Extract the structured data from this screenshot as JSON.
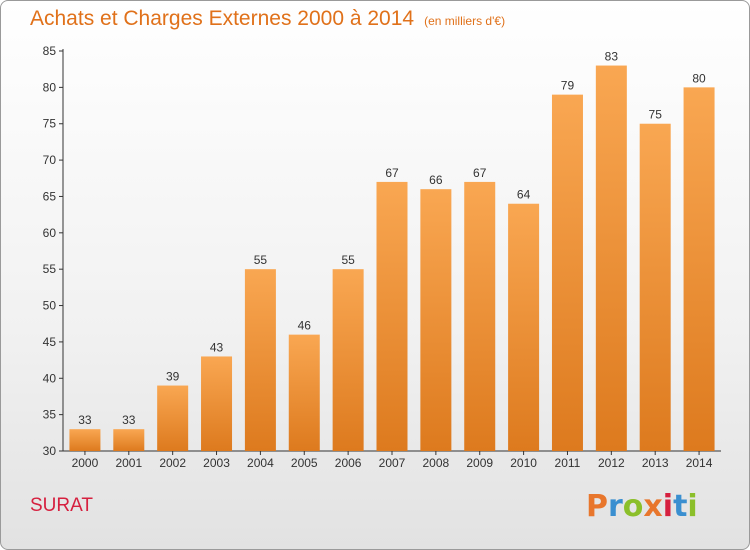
{
  "header": {
    "title": "Achats et Charges Externes 2000 à 2014",
    "subtitle": "(en milliers d'€)"
  },
  "footer": {
    "city": "SURAT",
    "logo": "Proxiti"
  },
  "colors": {
    "title": "#e0711a",
    "city": "#d6203f",
    "bar_light": "#f9a752",
    "bar_dark": "#dd7a1e",
    "logo": [
      "#e8762c",
      "#3a8fd0",
      "#8bbf2a",
      "#e8762c",
      "#d6203f",
      "#3a8fd0",
      "#8bbf2a"
    ]
  },
  "chart_data": {
    "type": "bar",
    "title": "Achats et Charges Externes 2000 à 2014",
    "subtitle": "(en milliers d'€)",
    "categories": [
      "2000",
      "2001",
      "2002",
      "2003",
      "2004",
      "2005",
      "2006",
      "2007",
      "2008",
      "2009",
      "2010",
      "2011",
      "2012",
      "2013",
      "2014"
    ],
    "values": [
      33,
      33,
      39,
      43,
      55,
      46,
      55,
      67,
      66,
      67,
      64,
      79,
      83,
      75,
      80
    ],
    "ylim": [
      30,
      85
    ],
    "yticks": [
      30,
      35,
      40,
      45,
      50,
      55,
      60,
      65,
      70,
      75,
      80,
      85
    ],
    "grid": false,
    "data_labels": true
  }
}
